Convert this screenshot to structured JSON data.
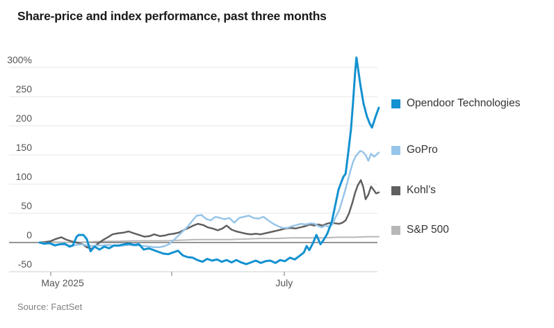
{
  "chart_data": {
    "type": "line",
    "title": "Share-price and index performance, past three months",
    "source_note": "Source: FactSet",
    "y_axis": {
      "unit": "%",
      "ticks": [
        300,
        250,
        200,
        150,
        100,
        50,
        0,
        -50
      ],
      "tick_labels": [
        "300%",
        "250",
        "200",
        "150",
        "100",
        "50",
        "0",
        "-50"
      ],
      "range": [
        -50,
        340
      ],
      "gridlines": true,
      "zero_baseline": true
    },
    "x_axis": {
      "ticks": [
        {
          "label": "May 2025",
          "t": 3.3
        },
        {
          "label": "",
          "t": 38.9
        },
        {
          "label": "July",
          "t": 72.1
        }
      ]
    },
    "axis_colors": {
      "gridline": "#e4e4e4",
      "baseline": "#cfcfcf",
      "zero_line": "#2b2b2b",
      "tick": "#777777",
      "label": "#555555"
    },
    "legend_position": "right",
    "series": [
      {
        "name": "Opendoor Technologies",
        "color": "#1291d0",
        "line_width": 3,
        "points": [
          [
            0,
            0
          ],
          [
            1.4,
            -2
          ],
          [
            2.9,
            -1
          ],
          [
            4.5,
            -5
          ],
          [
            5.9,
            -3
          ],
          [
            7.4,
            -2
          ],
          [
            8.8,
            -7
          ],
          [
            9.8,
            -5
          ],
          [
            10.9,
            10
          ],
          [
            11.5,
            13
          ],
          [
            12.9,
            13
          ],
          [
            13.9,
            6
          ],
          [
            15,
            -15
          ],
          [
            16.2,
            -7
          ],
          [
            17.6,
            -12
          ],
          [
            19.1,
            -7
          ],
          [
            20.5,
            -10
          ],
          [
            21.9,
            -5
          ],
          [
            23.4,
            -5
          ],
          [
            25,
            -3
          ],
          [
            26.4,
            -2
          ],
          [
            27.9,
            -4
          ],
          [
            29.3,
            -3
          ],
          [
            30.7,
            -12
          ],
          [
            32.2,
            -10
          ],
          [
            33.6,
            -13
          ],
          [
            35,
            -16
          ],
          [
            36.5,
            -19
          ],
          [
            37.9,
            -20
          ],
          [
            39.3,
            -17
          ],
          [
            40.8,
            -14
          ],
          [
            42.2,
            -22
          ],
          [
            43.6,
            -25
          ],
          [
            45.1,
            -26
          ],
          [
            46.5,
            -30
          ],
          [
            48,
            -33
          ],
          [
            49.4,
            -28
          ],
          [
            50.8,
            -31
          ],
          [
            52.3,
            -29
          ],
          [
            53.7,
            -33
          ],
          [
            55.1,
            -30
          ],
          [
            56.6,
            -34
          ],
          [
            58,
            -30
          ],
          [
            59.4,
            -34
          ],
          [
            60.9,
            -37
          ],
          [
            62.3,
            -34
          ],
          [
            63.7,
            -31
          ],
          [
            65.2,
            -35
          ],
          [
            66.6,
            -32
          ],
          [
            68,
            -31
          ],
          [
            69.5,
            -35
          ],
          [
            70.9,
            -30
          ],
          [
            72.3,
            -32
          ],
          [
            73.8,
            -26
          ],
          [
            75.2,
            -29
          ],
          [
            76.6,
            -23
          ],
          [
            77.9,
            -17
          ],
          [
            78.7,
            -6
          ],
          [
            79.5,
            -13
          ],
          [
            80.5,
            -2
          ],
          [
            81.6,
            13
          ],
          [
            82.8,
            -3
          ],
          [
            83.8,
            5
          ],
          [
            84.8,
            15
          ],
          [
            86.1,
            35
          ],
          [
            87.1,
            62
          ],
          [
            88.1,
            90
          ],
          [
            88.7,
            100
          ],
          [
            89.5,
            112
          ],
          [
            90.2,
            118
          ],
          [
            91,
            155
          ],
          [
            91.8,
            195
          ],
          [
            92.4,
            240
          ],
          [
            93,
            290
          ],
          [
            93.4,
            317
          ],
          [
            94.5,
            272
          ],
          [
            95.5,
            238
          ],
          [
            96.5,
            216
          ],
          [
            97.3,
            204
          ],
          [
            98,
            197
          ],
          [
            99,
            215
          ],
          [
            100,
            231
          ]
        ]
      },
      {
        "name": "GoPro",
        "color": "#97c5e9",
        "line_width": 2.5,
        "points": [
          [
            0,
            0
          ],
          [
            1.6,
            -1
          ],
          [
            3.1,
            -2
          ],
          [
            4.7,
            -4
          ],
          [
            6.4,
            -3
          ],
          [
            7.8,
            -4
          ],
          [
            9.4,
            -6
          ],
          [
            10.9,
            -4
          ],
          [
            12.5,
            -3
          ],
          [
            13.9,
            -5
          ],
          [
            15.4,
            -6
          ],
          [
            17,
            -5
          ],
          [
            18.6,
            -5
          ],
          [
            20.1,
            -4
          ],
          [
            21.5,
            -5
          ],
          [
            23.2,
            -6
          ],
          [
            24.8,
            -5
          ],
          [
            26.2,
            -4
          ],
          [
            27.7,
            -5
          ],
          [
            29.3,
            -5
          ],
          [
            30.9,
            -6
          ],
          [
            32.4,
            -7
          ],
          [
            33.8,
            -8
          ],
          [
            35.5,
            -8
          ],
          [
            36.9,
            -6
          ],
          [
            38.1,
            -3
          ],
          [
            39.5,
            4
          ],
          [
            40.6,
            10
          ],
          [
            42,
            18
          ],
          [
            43.6,
            27
          ],
          [
            45.1,
            38
          ],
          [
            46.3,
            46
          ],
          [
            47.7,
            47
          ],
          [
            49.2,
            40
          ],
          [
            50.4,
            38
          ],
          [
            51.8,
            44
          ],
          [
            53.3,
            42
          ],
          [
            54.5,
            40
          ],
          [
            55.9,
            42
          ],
          [
            57.4,
            34
          ],
          [
            58.8,
            42
          ],
          [
            60.2,
            44
          ],
          [
            61.7,
            46
          ],
          [
            63.1,
            42
          ],
          [
            64.5,
            41
          ],
          [
            66,
            44
          ],
          [
            67.4,
            38
          ],
          [
            68.9,
            32
          ],
          [
            70.3,
            28
          ],
          [
            71.7,
            25
          ],
          [
            73,
            25
          ],
          [
            74.4,
            28
          ],
          [
            75.8,
            30
          ],
          [
            77,
            32
          ],
          [
            78.5,
            31
          ],
          [
            79.9,
            33
          ],
          [
            81.1,
            32
          ],
          [
            82.2,
            28
          ],
          [
            83.2,
            26
          ],
          [
            84.2,
            29
          ],
          [
            85.2,
            27
          ],
          [
            86.3,
            31
          ],
          [
            87.3,
            44
          ],
          [
            88.3,
            55
          ],
          [
            89.1,
            70
          ],
          [
            90,
            88
          ],
          [
            90.8,
            105
          ],
          [
            91.6,
            122
          ],
          [
            92.4,
            138
          ],
          [
            93.2,
            148
          ],
          [
            94.5,
            157
          ],
          [
            95.3,
            155
          ],
          [
            96.1,
            150
          ],
          [
            96.9,
            140
          ],
          [
            97.7,
            152
          ],
          [
            98.6,
            147
          ],
          [
            100,
            154
          ]
        ]
      },
      {
        "name": "Kohl’s",
        "color": "#606060",
        "line_width": 2.5,
        "points": [
          [
            0,
            0
          ],
          [
            1.6,
            1
          ],
          [
            3.1,
            2
          ],
          [
            4.7,
            6
          ],
          [
            6.4,
            9
          ],
          [
            7.8,
            5
          ],
          [
            9.4,
            2
          ],
          [
            10.9,
            0
          ],
          [
            12.5,
            -2
          ],
          [
            13.9,
            -8
          ],
          [
            15.4,
            -11
          ],
          [
            17,
            -3
          ],
          [
            18.6,
            4
          ],
          [
            20.1,
            9
          ],
          [
            21.5,
            14
          ],
          [
            23.2,
            16
          ],
          [
            24.8,
            17
          ],
          [
            26.2,
            19
          ],
          [
            27.7,
            16
          ],
          [
            29.3,
            13
          ],
          [
            30.9,
            10
          ],
          [
            32.4,
            11
          ],
          [
            33.8,
            14
          ],
          [
            35.5,
            11
          ],
          [
            36.9,
            12
          ],
          [
            38.1,
            14
          ],
          [
            39.5,
            15
          ],
          [
            41,
            17
          ],
          [
            42.4,
            21
          ],
          [
            43.9,
            25
          ],
          [
            45.3,
            29
          ],
          [
            46.7,
            32
          ],
          [
            48.2,
            30
          ],
          [
            49.6,
            26
          ],
          [
            51,
            24
          ],
          [
            52.5,
            21
          ],
          [
            53.9,
            24
          ],
          [
            55.1,
            29
          ],
          [
            56.6,
            22
          ],
          [
            58,
            19
          ],
          [
            59.4,
            17
          ],
          [
            60.9,
            15
          ],
          [
            62.3,
            14
          ],
          [
            63.7,
            15
          ],
          [
            65.2,
            14
          ],
          [
            66.6,
            16
          ],
          [
            68.2,
            18
          ],
          [
            69.7,
            20
          ],
          [
            71.1,
            22
          ],
          [
            72.5,
            24
          ],
          [
            74,
            25
          ],
          [
            75.4,
            24
          ],
          [
            76.8,
            26
          ],
          [
            78.3,
            28
          ],
          [
            79.7,
            31
          ],
          [
            80.9,
            29
          ],
          [
            82.2,
            31
          ],
          [
            83.4,
            29
          ],
          [
            84.6,
            32
          ],
          [
            85.9,
            34
          ],
          [
            87.1,
            33
          ],
          [
            88.3,
            32
          ],
          [
            89.3,
            34
          ],
          [
            90.2,
            38
          ],
          [
            91.2,
            50
          ],
          [
            92.2,
            68
          ],
          [
            93,
            85
          ],
          [
            93.8,
            98
          ],
          [
            94.7,
            107
          ],
          [
            95.4,
            95
          ],
          [
            96.1,
            74
          ],
          [
            96.9,
            82
          ],
          [
            97.7,
            96
          ],
          [
            98.5,
            90
          ],
          [
            99.2,
            84
          ],
          [
            100,
            86
          ]
        ]
      },
      {
        "name": "S&P 500",
        "color": "#b7b7b7",
        "line_width": 2,
        "points": [
          [
            0,
            0
          ],
          [
            4.7,
            1
          ],
          [
            9.4,
            0
          ],
          [
            13.9,
            1
          ],
          [
            18.6,
            2
          ],
          [
            23.2,
            2
          ],
          [
            27.7,
            3
          ],
          [
            32.4,
            3
          ],
          [
            36.9,
            3
          ],
          [
            41.6,
            4
          ],
          [
            46.3,
            5
          ],
          [
            51,
            5
          ],
          [
            55.9,
            5
          ],
          [
            60.4,
            6
          ],
          [
            65.2,
            7
          ],
          [
            69.9,
            7
          ],
          [
            74.4,
            8
          ],
          [
            79.1,
            8
          ],
          [
            83.8,
            8
          ],
          [
            88.3,
            9
          ],
          [
            92.8,
            9
          ],
          [
            96.7,
            10
          ],
          [
            100,
            10
          ]
        ]
      }
    ]
  }
}
